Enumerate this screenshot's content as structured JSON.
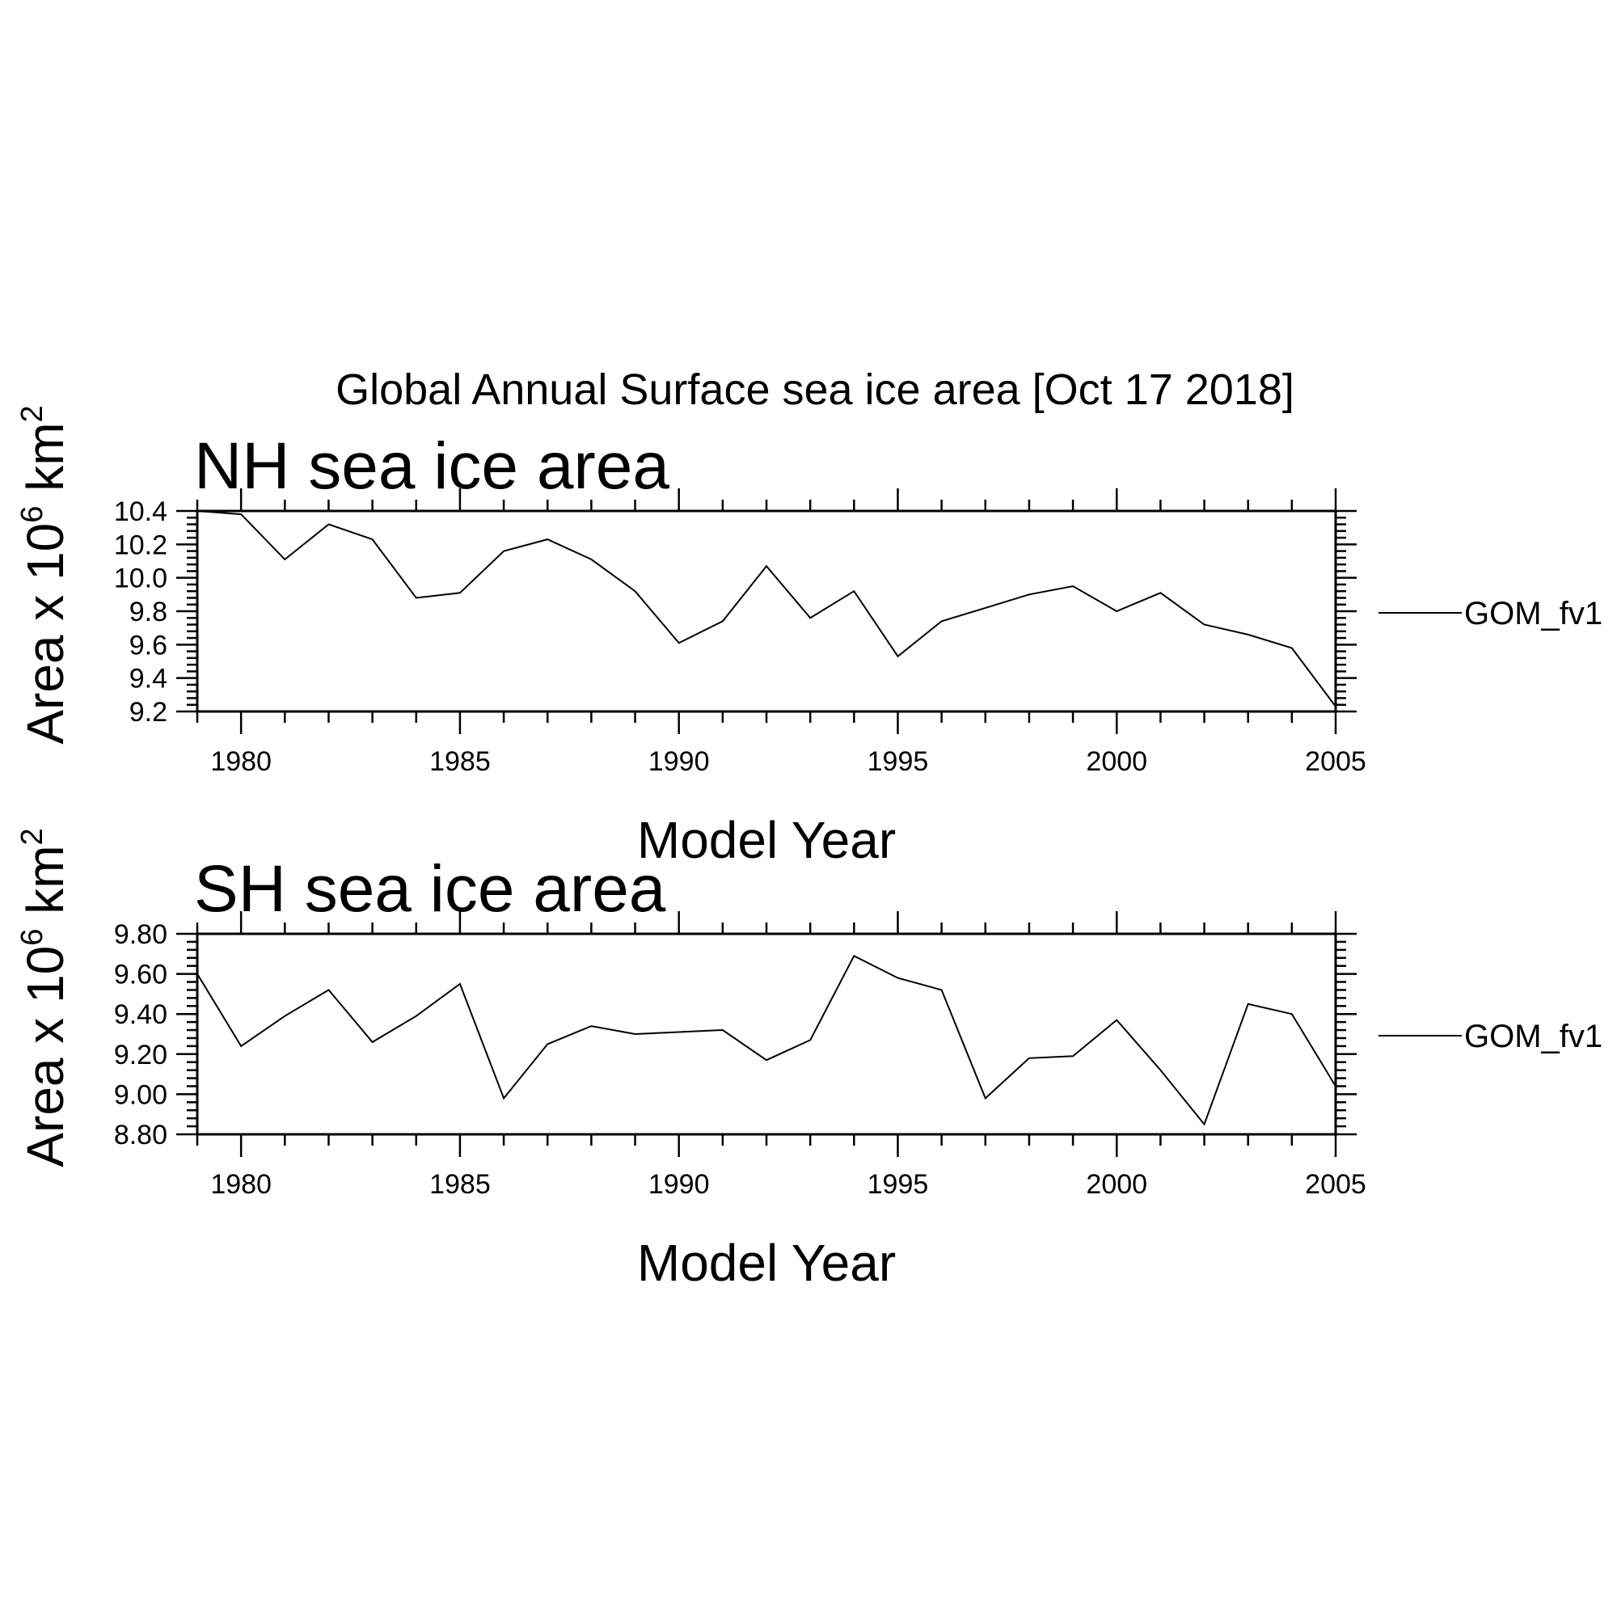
{
  "title": "Global Annual Surface sea ice area [Oct 17 2018]",
  "colors": {
    "line": "#000000",
    "background": "#ffffff"
  },
  "chart_data": [
    {
      "type": "line",
      "title": "NH sea ice area",
      "xlabel": "Model Year",
      "ylabel_main": "Area x 10",
      "ylabel_sup": "6",
      "ylabel_unit": " km",
      "ylabel_unit_sup": "2",
      "xlim": [
        1979,
        2005
      ],
      "ylim": [
        9.2,
        10.4
      ],
      "x_ticks": [
        1980,
        1985,
        1990,
        1995,
        2000,
        2005
      ],
      "x_tick_labels": [
        "1980",
        "1985",
        "1990",
        "1995",
        "2000",
        "2005"
      ],
      "y_ticks": [
        9.2,
        9.4,
        9.6,
        9.8,
        10.0,
        10.2,
        10.4
      ],
      "y_tick_labels": [
        "9.2",
        "9.4",
        "9.6",
        "9.8",
        "10.0",
        "10.2",
        "10.4"
      ],
      "legend_position": "right",
      "grid": false,
      "series": [
        {
          "name": "GOM_fv1",
          "x": [
            1979,
            1980,
            1981,
            1982,
            1983,
            1984,
            1985,
            1986,
            1987,
            1988,
            1989,
            1990,
            1991,
            1992,
            1993,
            1994,
            1995,
            1996,
            1997,
            1998,
            1999,
            2000,
            2001,
            2002,
            2003,
            2004,
            2005
          ],
          "values": [
            10.4,
            10.38,
            10.11,
            10.32,
            10.23,
            9.88,
            9.91,
            10.16,
            10.23,
            10.11,
            9.92,
            9.61,
            9.74,
            10.07,
            9.76,
            9.92,
            9.53,
            9.74,
            9.82,
            9.9,
            9.95,
            9.8,
            9.91,
            9.72,
            9.66,
            9.58,
            9.23
          ]
        }
      ]
    },
    {
      "type": "line",
      "title": "SH sea ice area",
      "xlabel": "Model Year",
      "ylabel_main": "Area x 10",
      "ylabel_sup": "6",
      "ylabel_unit": " km",
      "ylabel_unit_sup": "2",
      "xlim": [
        1979,
        2005
      ],
      "ylim": [
        8.8,
        9.8
      ],
      "x_ticks": [
        1980,
        1985,
        1990,
        1995,
        2000,
        2005
      ],
      "x_tick_labels": [
        "1980",
        "1985",
        "1990",
        "1995",
        "2000",
        "2005"
      ],
      "y_ticks": [
        8.8,
        9.0,
        9.2,
        9.4,
        9.6,
        9.8
      ],
      "y_tick_labels": [
        "8.80",
        "9.00",
        "9.20",
        "9.40",
        "9.60",
        "9.80"
      ],
      "legend_position": "right",
      "grid": false,
      "series": [
        {
          "name": "GOM_fv1",
          "x": [
            1979,
            1980,
            1981,
            1982,
            1983,
            1984,
            1985,
            1986,
            1987,
            1988,
            1989,
            1990,
            1991,
            1992,
            1993,
            1994,
            1995,
            1996,
            1997,
            1998,
            1999,
            2000,
            2001,
            2002,
            2003,
            2004,
            2005
          ],
          "values": [
            9.6,
            9.24,
            9.39,
            9.52,
            9.26,
            9.39,
            9.55,
            8.98,
            9.25,
            9.34,
            9.3,
            9.31,
            9.32,
            9.17,
            9.27,
            9.69,
            9.58,
            9.52,
            8.98,
            9.18,
            9.19,
            9.37,
            9.12,
            8.85,
            9.45,
            9.4,
            9.04
          ]
        }
      ]
    }
  ]
}
